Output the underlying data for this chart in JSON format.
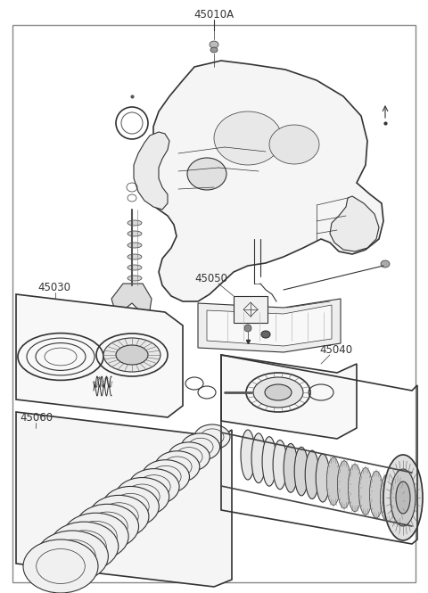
{
  "bg_color": "#ffffff",
  "line_color": "#333333",
  "label_color": "#222222",
  "fig_width": 4.8,
  "fig_height": 6.65,
  "dpi": 100,
  "label_fontsize": 8.0
}
